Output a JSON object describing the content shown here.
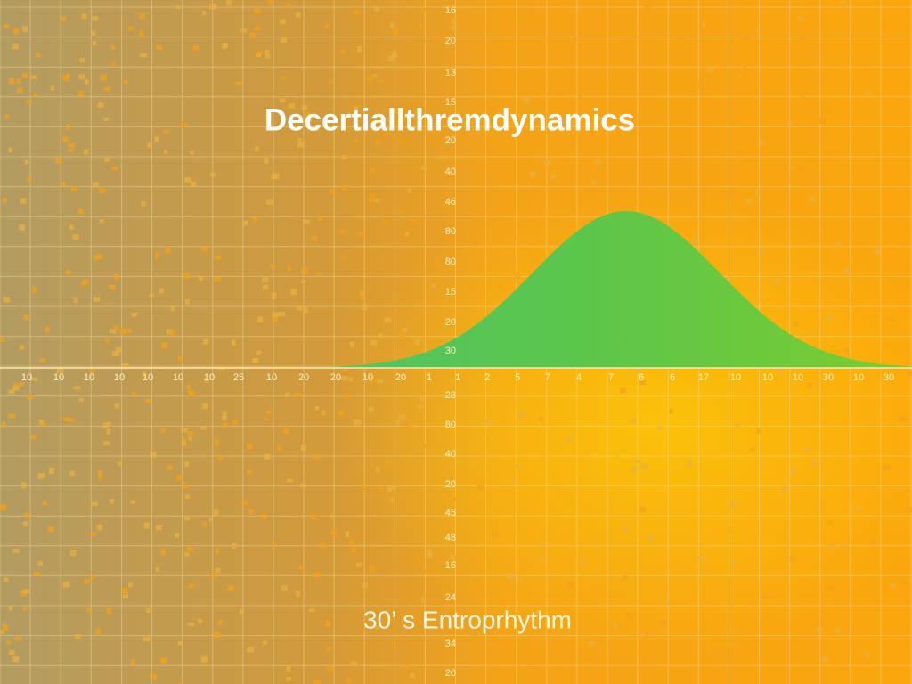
{
  "header": {
    "title": "Decertiallthremdynamics"
  },
  "footer": {
    "subtitle": "30’ s Entroprhythm"
  },
  "vertical_labels": [
    "16",
    "20",
    "13",
    "15",
    "20",
    "40",
    "46",
    "80",
    "80",
    "15",
    "20",
    "30",
    "28",
    "80",
    "40",
    "20",
    "45",
    "48",
    "16",
    "24",
    "34",
    "20"
  ],
  "horizontal_labels": [
    "10",
    "10",
    "10",
    "10",
    "10",
    "10",
    "10",
    "25",
    "10",
    "20",
    "20",
    "10",
    "20",
    "1",
    "1",
    "2",
    "5",
    "7",
    "4",
    "7",
    "6",
    "6",
    "17",
    "10",
    "10",
    "10",
    "30",
    "10",
    "30"
  ]
}
